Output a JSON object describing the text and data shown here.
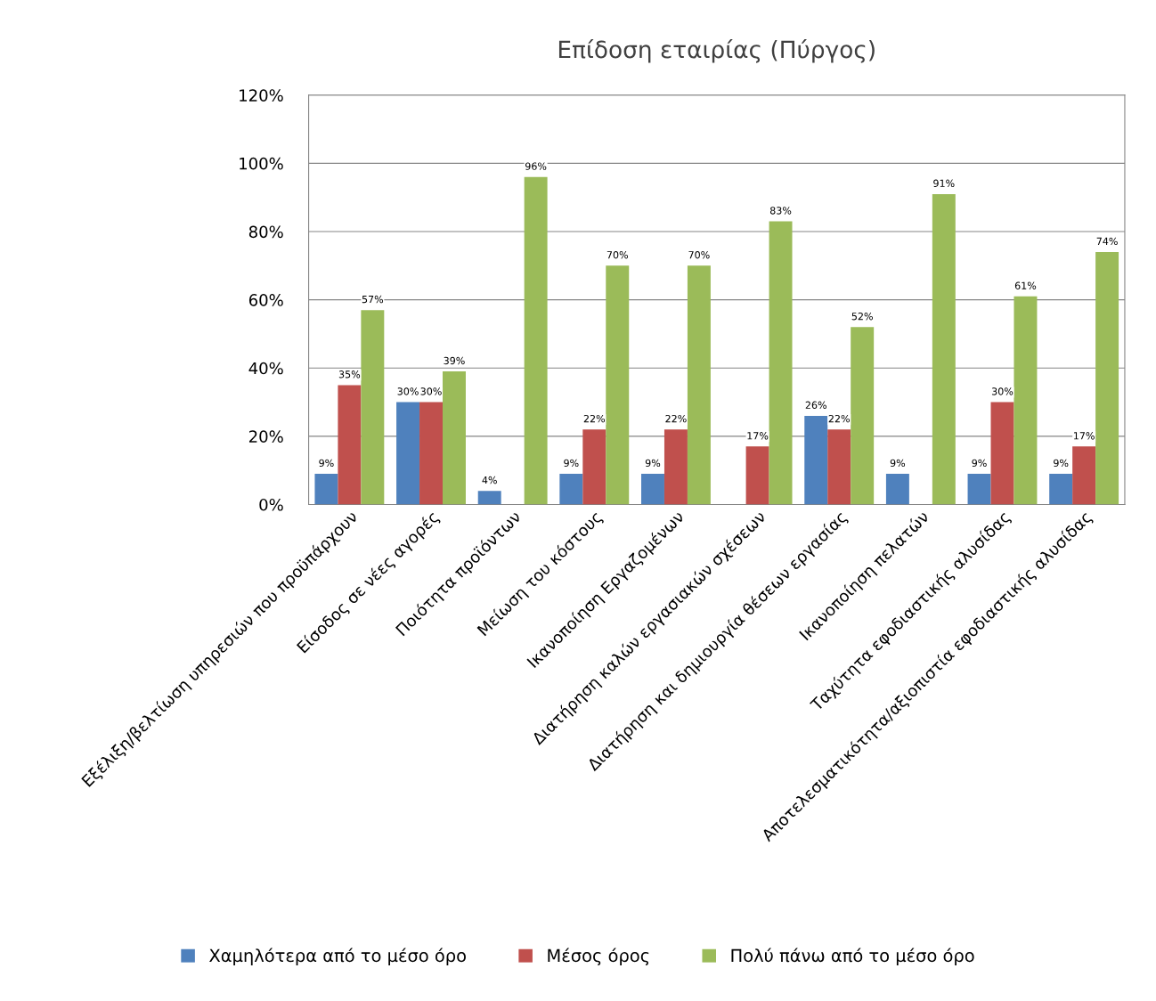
{
  "chart_data": {
    "type": "bar",
    "title": "Επίδοση εταιρίας (Πύργος)",
    "categories": [
      "Εξέλιξη/βελτίωση υπηρεσιών που προϋπάρχουν",
      "Είσοδος σε νέες αγορές",
      "Ποιότητα προϊόντων",
      "Μείωση του κόστους",
      "Ικανοποίηση Εργαζομένων",
      "Διατήρηση καλών εργασιακών σχέσεων",
      "Διατήρηση και δημιουργία θέσεων εργασίας",
      "Ικανοποίηση πελατών",
      "Ταχύτητα εφοδιαστικής αλυσίδας",
      "Αποτελεσματικότητα/αξιοπιστία εφοδιαστικής αλυσίδας"
    ],
    "series": [
      {
        "name": "Χαμηλότερα από το μέσο όρο",
        "color": "#4f81bd",
        "values": [
          9,
          30,
          4,
          9,
          9,
          null,
          26,
          9,
          9,
          9
        ],
        "value_labels": [
          "9%",
          "30%",
          "4%",
          "9%",
          "9%",
          null,
          "26%",
          "9%",
          "9%",
          "9%"
        ]
      },
      {
        "name": "Μέσος όρος",
        "color": "#c0504d",
        "values": [
          35,
          30,
          null,
          22,
          22,
          17,
          22,
          null,
          30,
          17
        ],
        "value_labels": [
          "35%",
          "30%",
          null,
          "22%",
          "22%",
          "17%",
          "22%",
          null,
          "30%",
          "17%"
        ]
      },
      {
        "name": "Πολύ πάνω από το μέσο όρο",
        "color": "#9bbb59",
        "values": [
          57,
          39,
          96,
          70,
          70,
          83,
          52,
          91,
          61,
          74
        ],
        "value_labels": [
          "57%",
          "39%",
          "96%",
          "70%",
          "70%",
          "83%",
          "52%",
          "91%",
          "61%",
          "74%"
        ]
      }
    ],
    "ylim": [
      0,
      120
    ],
    "yticks": [
      {
        "value": 0,
        "label": "0%"
      },
      {
        "value": 20,
        "label": "20%"
      },
      {
        "value": 40,
        "label": "40%"
      },
      {
        "value": 60,
        "label": "60%"
      },
      {
        "value": 80,
        "label": "80%"
      },
      {
        "value": 100,
        "label": "100%"
      },
      {
        "value": 120,
        "label": "120%"
      }
    ],
    "grid": "y",
    "legend": "bottom"
  }
}
